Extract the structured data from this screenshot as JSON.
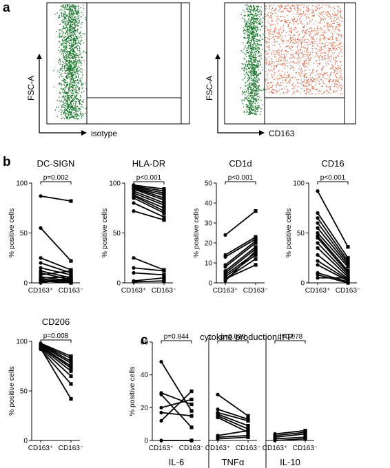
{
  "panel_labels": {
    "a": "a",
    "b": "b",
    "c": "c"
  },
  "flow": {
    "ylabel": "FSC-A",
    "plots": [
      {
        "xlabel": "isotype",
        "dot_colors": [
          "#1d7a2e"
        ]
      },
      {
        "xlabel": "CD163",
        "dot_colors": [
          "#1d7a2e",
          "#e0633a"
        ]
      }
    ]
  },
  "group_labels": {
    "pos": "CD163⁺",
    "neg": "CD163⁻"
  },
  "colors": {
    "line": "#000000",
    "green": "#1d7a2e",
    "orange": "#e0633a"
  },
  "cytokine_title": "cytokine production IFP",
  "chart_data": [
    {
      "type": "line",
      "title": "DC-SIGN",
      "ylabel": "% positive cells",
      "ylim": [
        0,
        100
      ],
      "yticks": [
        0,
        50,
        100
      ],
      "categories": [
        "CD163⁺",
        "CD163⁻"
      ],
      "pvalue": "p=0.002",
      "pairs": [
        [
          87,
          82
        ],
        [
          55,
          22
        ],
        [
          25,
          13
        ],
        [
          20,
          10
        ],
        [
          15,
          8
        ],
        [
          12,
          5
        ],
        [
          10,
          3
        ],
        [
          8,
          12
        ],
        [
          6,
          2
        ],
        [
          5,
          6
        ],
        [
          4,
          1
        ],
        [
          3,
          2
        ],
        [
          2,
          0
        ],
        [
          1,
          3
        ],
        [
          0,
          5
        ]
      ]
    },
    {
      "type": "line",
      "title": "HLA-DR",
      "ylabel": "% positive cells",
      "ylim": [
        0,
        100
      ],
      "yticks": [
        0,
        50,
        100
      ],
      "categories": [
        "CD163⁺",
        "CD163⁻"
      ],
      "pvalue": "p<0.001",
      "pairs": [
        [
          98,
          94
        ],
        [
          97,
          92
        ],
        [
          96,
          90
        ],
        [
          95,
          88
        ],
        [
          95,
          85
        ],
        [
          94,
          83
        ],
        [
          92,
          80
        ],
        [
          90,
          78
        ],
        [
          88,
          75
        ],
        [
          87,
          72
        ],
        [
          85,
          70
        ],
        [
          80,
          66
        ],
        [
          72,
          63
        ],
        [
          25,
          13
        ],
        [
          15,
          12
        ],
        [
          10,
          8
        ],
        [
          2,
          5
        ],
        [
          1,
          2
        ]
      ]
    },
    {
      "type": "line",
      "title": "CD1d",
      "ylabel": "% positive cells",
      "ylim": [
        0,
        50
      ],
      "yticks": [
        0,
        10,
        20,
        30,
        40,
        50
      ],
      "categories": [
        "CD163⁺",
        "CD163⁻"
      ],
      "pvalue": "p<0.001",
      "pairs": [
        [
          24,
          36
        ],
        [
          14,
          23
        ],
        [
          13,
          22
        ],
        [
          9,
          21
        ],
        [
          8,
          20
        ],
        [
          6,
          18
        ],
        [
          5,
          17
        ],
        [
          4,
          15
        ],
        [
          3,
          14
        ],
        [
          2,
          12
        ],
        [
          2,
          9
        ],
        [
          1,
          16
        ]
      ]
    },
    {
      "type": "line",
      "title": "CD16",
      "ylabel": "% positive cells",
      "ylim": [
        0,
        100
      ],
      "yticks": [
        0,
        50,
        100
      ],
      "categories": [
        "CD163⁺",
        "CD163⁻"
      ],
      "pvalue": "p<0.001",
      "pairs": [
        [
          92,
          36
        ],
        [
          70,
          25
        ],
        [
          65,
          22
        ],
        [
          60,
          20
        ],
        [
          55,
          18
        ],
        [
          50,
          16
        ],
        [
          47,
          12
        ],
        [
          45,
          10
        ],
        [
          40,
          8
        ],
        [
          35,
          6
        ],
        [
          28,
          4
        ],
        [
          22,
          3
        ],
        [
          18,
          2
        ],
        [
          10,
          1
        ],
        [
          8,
          0
        ],
        [
          5,
          5
        ]
      ]
    },
    {
      "type": "line",
      "title": "CD206",
      "ylabel": "% positive cells",
      "ylim": [
        0,
        100
      ],
      "yticks": [
        0,
        50,
        100
      ],
      "categories": [
        "CD163⁺",
        "CD163⁻"
      ],
      "pvalue": "p=0.008",
      "pairs": [
        [
          98,
          85
        ],
        [
          97,
          83
        ],
        [
          97,
          80
        ],
        [
          96,
          78
        ],
        [
          95,
          75
        ],
        [
          95,
          73
        ],
        [
          94,
          70
        ],
        [
          93,
          65
        ],
        [
          92,
          57
        ],
        [
          93,
          42
        ]
      ]
    },
    {
      "type": "line",
      "title": "",
      "xlabel": "IL-6",
      "ylabel": "% positive cells",
      "ylim": [
        0,
        60
      ],
      "yticks": [
        0,
        20,
        40,
        60
      ],
      "categories": [
        "CD163⁺",
        "CD163⁻"
      ],
      "pvalue": "p=0.844",
      "pairs": [
        [
          48,
          18
        ],
        [
          29,
          22
        ],
        [
          28,
          8
        ],
        [
          20,
          25
        ],
        [
          17,
          15
        ],
        [
          12,
          30
        ],
        [
          0,
          0
        ]
      ]
    },
    {
      "type": "line",
      "title": "",
      "xlabel": "TNFα",
      "ylim": [
        0,
        60
      ],
      "categories": [
        "CD163⁺",
        "CD163⁻"
      ],
      "pvalue": "p=0.039",
      "pairs": [
        [
          28,
          15
        ],
        [
          19,
          13
        ],
        [
          17,
          12
        ],
        [
          16,
          9
        ],
        [
          15,
          7
        ],
        [
          14,
          5
        ],
        [
          3,
          6
        ],
        [
          2,
          3
        ],
        [
          1,
          2
        ]
      ]
    },
    {
      "type": "line",
      "title": "",
      "xlabel": "IL-10",
      "ylim": [
        0,
        60
      ],
      "categories": [
        "CD163⁺",
        "CD163⁻"
      ],
      "pvalue": "p=0.078",
      "pairs": [
        [
          4,
          6
        ],
        [
          3,
          5
        ],
        [
          2,
          4
        ],
        [
          1,
          2
        ],
        [
          0,
          1
        ]
      ]
    }
  ]
}
